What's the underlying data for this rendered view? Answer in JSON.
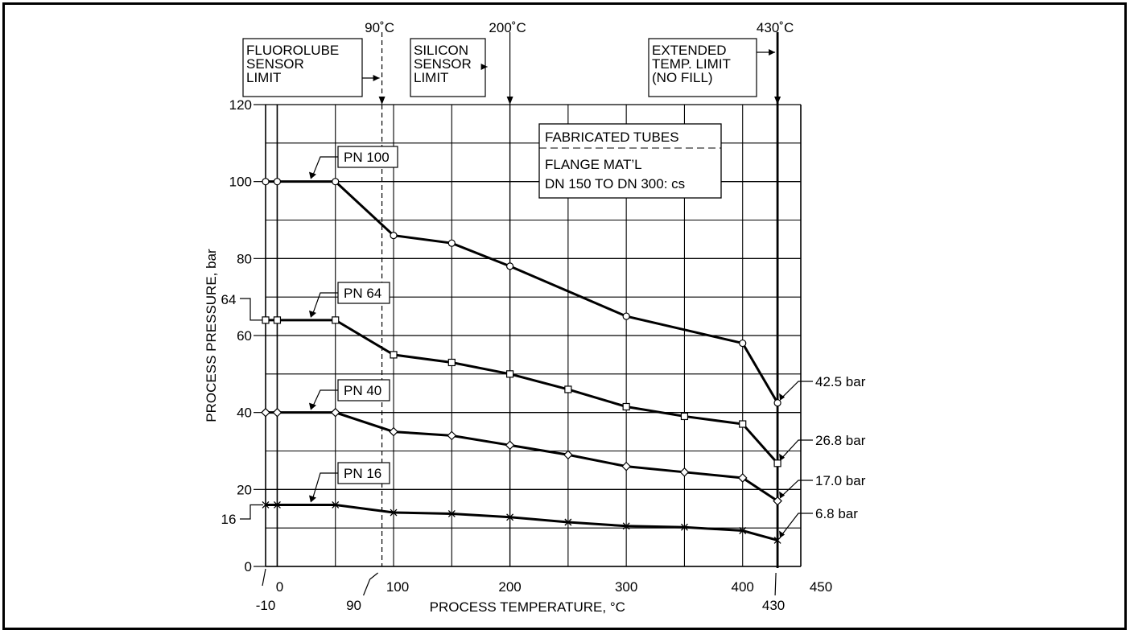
{
  "chart_data": {
    "type": "line",
    "xlabel": "PROCESS TEMPERATURE, °C",
    "ylabel": "PROCESS PRESSURE, bar",
    "xlim": [
      -10,
      450
    ],
    "ylim": [
      0,
      120
    ],
    "x_ticks": [
      "0",
      "100",
      "200",
      "300",
      "400",
      "450"
    ],
    "y_ticks": [
      "0",
      "20",
      "40",
      "60",
      "80",
      "100",
      "120"
    ],
    "grid": true,
    "series": [
      {
        "name": "PN 100",
        "marker": "circle",
        "x": [
          -10,
          0,
          50,
          100,
          150,
          200,
          300,
          400,
          430
        ],
        "y": [
          100,
          100,
          100,
          86,
          84,
          78,
          65,
          58,
          42.5
        ]
      },
      {
        "name": "PN 64",
        "marker": "square",
        "x": [
          -10,
          0,
          50,
          100,
          150,
          200,
          250,
          300,
          350,
          400,
          430
        ],
        "y": [
          64,
          64,
          64,
          55,
          53,
          50,
          46,
          41.5,
          39,
          37,
          26.8
        ]
      },
      {
        "name": "PN 40",
        "marker": "diamond",
        "x": [
          -10,
          0,
          50,
          100,
          150,
          200,
          250,
          300,
          350,
          400,
          430
        ],
        "y": [
          40,
          40,
          40,
          35,
          34,
          31.5,
          29,
          26,
          24.5,
          23,
          17
        ]
      },
      {
        "name": "PN 16",
        "marker": "x",
        "x": [
          -10,
          0,
          50,
          100,
          150,
          200,
          250,
          300,
          350,
          400,
          430
        ],
        "y": [
          16,
          16,
          16,
          14,
          13.7,
          12.8,
          11.5,
          10.5,
          10.2,
          9.3,
          6.8
        ]
      }
    ],
    "limits": [
      {
        "temp": 90,
        "top_label": "90˚C",
        "box_lines": [
          "FLUOROLUBE",
          "SENSOR",
          "LIMIT"
        ],
        "bottom_label": "90",
        "dashed": true
      },
      {
        "temp": 200,
        "top_label": "200˚C",
        "box_lines": [
          "SILICON",
          "SENSOR",
          "LIMIT"
        ],
        "dashed": false
      },
      {
        "temp": 430,
        "top_label": "430˚C",
        "box_lines": [
          "EXTENDED",
          "TEMP. LIMIT",
          "(NO FILL)"
        ],
        "bottom_label": "430",
        "dashed": false
      }
    ],
    "extra_labels": {
      "x_min": "-10",
      "y_64": "64",
      "y_16": "16"
    },
    "end_labels": [
      "42.5 bar",
      "26.8 bar",
      "17.0 bar",
      "6.8 bar"
    ],
    "legend_box": {
      "title": "FABRICATED TUBES",
      "lines": [
        "FLANGE MAT’L",
        "DN 150 TO DN 300: cs"
      ]
    }
  }
}
